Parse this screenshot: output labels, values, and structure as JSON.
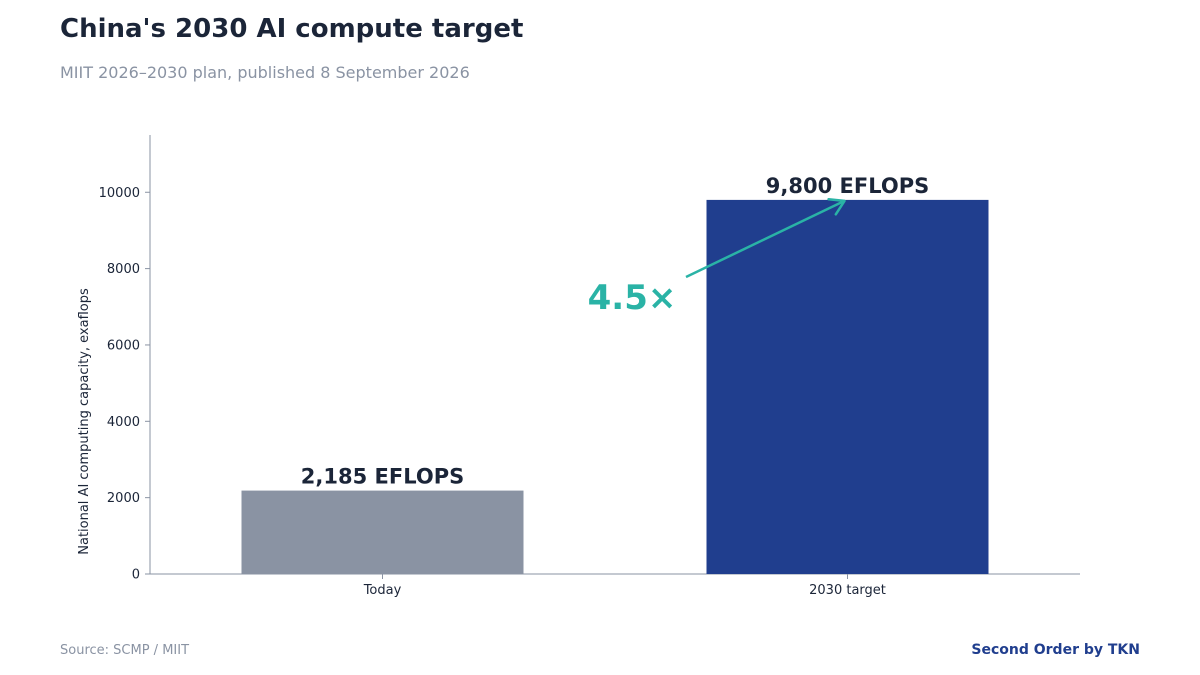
{
  "header": {
    "title": "China's 2030 AI compute target",
    "subtitle": "MIIT 2026–2030 plan, published 8 September 2026"
  },
  "footer": {
    "source": "Source: SCMP / MIIT",
    "brand": "Second Order by TKN"
  },
  "colors": {
    "today_bar": "#8a93a3",
    "target_bar": "#203e8e",
    "accent": "#2ab3a6",
    "text": "#1b2538",
    "muted": "#8a93a3"
  },
  "chart_data": {
    "type": "bar",
    "categories": [
      "Today",
      "2030 target"
    ],
    "values": [
      2185,
      9800
    ],
    "data_labels": [
      "2,185 EFLOPS",
      "9,800 EFLOPS"
    ],
    "ylabel": "National AI computing capacity, exaflops",
    "ylim": [
      0,
      11500
    ],
    "yticks": [
      0,
      2000,
      4000,
      6000,
      8000,
      10000
    ],
    "grid": false,
    "annotation": {
      "text": "4.5×",
      "from_category": "Today",
      "to_category": "2030 target"
    }
  }
}
